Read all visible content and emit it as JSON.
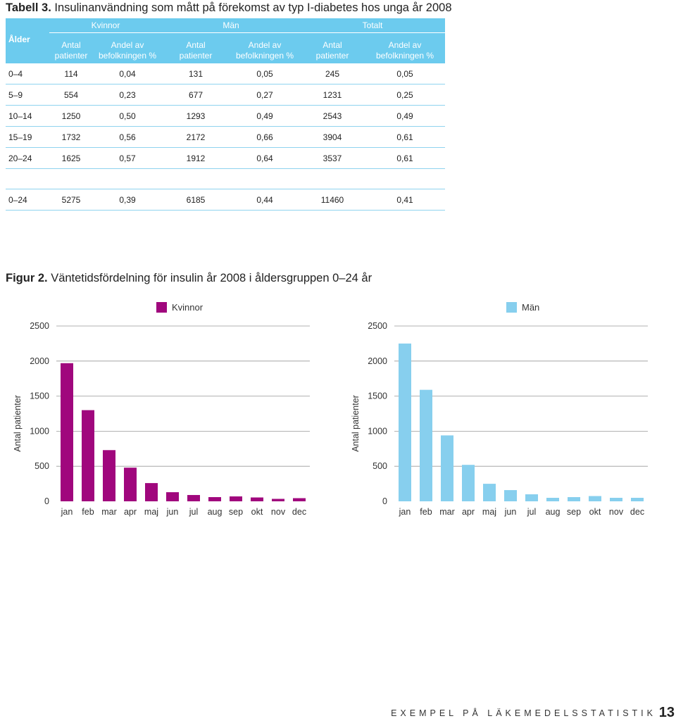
{
  "table": {
    "label": "Tabell 3.",
    "title": "Insulinanvändning som mått på förekomst av typ I-diabetes hos unga år 2008",
    "group_headers": [
      "Kvinnor",
      "Män",
      "Totalt"
    ],
    "age_header": "Ålder",
    "col_headers": [
      {
        "line1": "Antal",
        "line2": "patienter"
      },
      {
        "line1": "Andel av",
        "line2": "befolkningen %"
      },
      {
        "line1": "Antal",
        "line2": "patienter"
      },
      {
        "line1": "Andel av",
        "line2": "befolkningen %"
      },
      {
        "line1": "Antal",
        "line2": "patienter"
      },
      {
        "line1": "Andel av",
        "line2": "befolkningen %"
      }
    ],
    "rows": [
      [
        "0–4",
        "114",
        "0,04",
        "131",
        "0,05",
        "245",
        "0,05"
      ],
      [
        "5–9",
        "554",
        "0,23",
        "677",
        "0,27",
        "1231",
        "0,25"
      ],
      [
        "10–14",
        "1250",
        "0,50",
        "1293",
        "0,49",
        "2543",
        "0,49"
      ],
      [
        "15–19",
        "1732",
        "0,56",
        "2172",
        "0,66",
        "3904",
        "0,61"
      ],
      [
        "20–24",
        "1625",
        "0,57",
        "1912",
        "0,64",
        "3537",
        "0,61"
      ]
    ],
    "total_row": [
      "0–24",
      "5275",
      "0,39",
      "6185",
      "0,44",
      "11460",
      "0,41"
    ]
  },
  "figure": {
    "label": "Figur 2.",
    "title": "Väntetidsfördelning för insulin år 2008 i åldersgruppen 0–24 år"
  },
  "chart_data": [
    {
      "type": "bar",
      "legend": "Kvinnor",
      "legend_placement": "top",
      "color": "#a0077d",
      "categories": [
        "jan",
        "feb",
        "mar",
        "apr",
        "maj",
        "jun",
        "jul",
        "aug",
        "sep",
        "okt",
        "nov",
        "dec"
      ],
      "values": [
        1970,
        1300,
        730,
        480,
        260,
        130,
        90,
        60,
        70,
        55,
        35,
        45
      ],
      "ylabel": "Antal patienter",
      "ylim": [
        0,
        2500
      ],
      "yticks": [
        "0",
        "500",
        "1000",
        "1500",
        "2000",
        "2500"
      ],
      "grid": true
    },
    {
      "type": "bar",
      "legend": "Män",
      "legend_placement": "top-right",
      "color": "#87cfee",
      "categories": [
        "jan",
        "feb",
        "mar",
        "apr",
        "maj",
        "jun",
        "jul",
        "aug",
        "sep",
        "okt",
        "nov",
        "dec"
      ],
      "values": [
        2250,
        1590,
        940,
        520,
        250,
        160,
        100,
        50,
        60,
        75,
        50,
        50
      ],
      "ylabel": "Antal patienter",
      "ylim": [
        0,
        2500
      ],
      "yticks": [
        "0",
        "500",
        "1000",
        "1500",
        "2000",
        "2500"
      ],
      "grid": true
    }
  ],
  "footer": {
    "text": "EXEMPEL PÅ LÄKEMEDELSSTATISTIK",
    "page": "13"
  }
}
